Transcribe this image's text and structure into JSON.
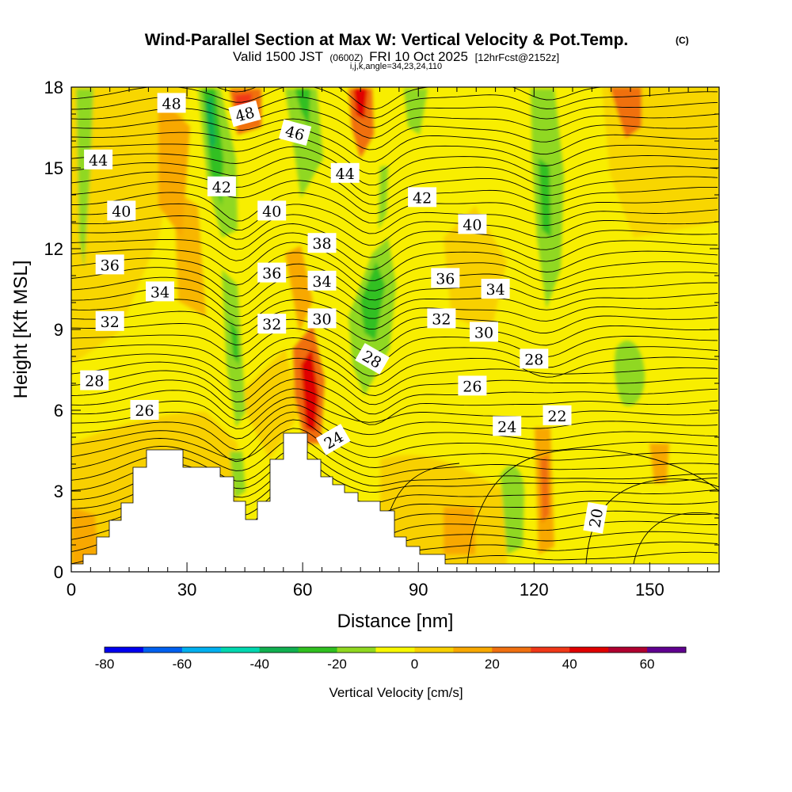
{
  "chart_data": {
    "type": "contour-section",
    "title": "Wind-Parallel Section at Max W: Vertical Velocity & Pot.Temp.",
    "title_mark": "(C)",
    "subtitle_parts": [
      "Valid 1500 JST",
      "(0600Z)",
      "FRI 10 Oct 2025",
      "[12hrFcst@2152z]"
    ],
    "params_line": "i,j,k,angle=34,23,24,110",
    "xlabel": "Distance [nm]",
    "ylabel": "Height [Kft MSL]",
    "xlim": [
      0,
      168
    ],
    "ylim": [
      0,
      18
    ],
    "x_ticks": [
      "0",
      "30",
      "60",
      "90",
      "120",
      "150"
    ],
    "y_ticks": [
      "0",
      "3",
      "6",
      "9",
      "12",
      "15",
      "18"
    ],
    "colorbar": {
      "label": "Vertical Velocity [cm/s]",
      "range": [
        -80,
        70
      ],
      "step": 10,
      "tick_labels": [
        "-80",
        "-60",
        "-40",
        "-20",
        "0",
        "20",
        "40",
        "60"
      ],
      "colors": [
        "#0000f0",
        "#0060f0",
        "#00b0f0",
        "#00d8b0",
        "#10b050",
        "#30c020",
        "#90d820",
        "#f8f800",
        "#f8d000",
        "#f8a800",
        "#f07010",
        "#f03818",
        "#e00000",
        "#b00030",
        "#600090"
      ]
    },
    "contour_labels": [
      {
        "text": "48",
        "x": 26,
        "y": 17.4,
        "rot": 0
      },
      {
        "text": "48",
        "x": 45,
        "y": 17.0,
        "rot": -15
      },
      {
        "text": "46",
        "x": 58,
        "y": 16.3,
        "rot": 15
      },
      {
        "text": "44",
        "x": 7,
        "y": 15.3,
        "rot": 0
      },
      {
        "text": "44",
        "x": 71,
        "y": 14.8,
        "rot": 0
      },
      {
        "text": "42",
        "x": 39,
        "y": 14.3,
        "rot": 0
      },
      {
        "text": "40",
        "x": 13,
        "y": 13.4,
        "rot": 0
      },
      {
        "text": "40",
        "x": 52,
        "y": 13.4,
        "rot": 0
      },
      {
        "text": "42",
        "x": 91,
        "y": 13.9,
        "rot": 0
      },
      {
        "text": "38",
        "x": 65,
        "y": 12.2,
        "rot": 0
      },
      {
        "text": "40",
        "x": 104,
        "y": 12.9,
        "rot": 0
      },
      {
        "text": "36",
        "x": 10,
        "y": 11.4,
        "rot": 0
      },
      {
        "text": "36",
        "x": 52,
        "y": 11.1,
        "rot": 0
      },
      {
        "text": "34",
        "x": 65,
        "y": 10.8,
        "rot": 0
      },
      {
        "text": "36",
        "x": 97,
        "y": 10.9,
        "rot": 0
      },
      {
        "text": "34",
        "x": 23,
        "y": 10.4,
        "rot": 0
      },
      {
        "text": "34",
        "x": 110,
        "y": 10.5,
        "rot": 0
      },
      {
        "text": "32",
        "x": 10,
        "y": 9.3,
        "rot": 0
      },
      {
        "text": "32",
        "x": 52,
        "y": 9.2,
        "rot": 0
      },
      {
        "text": "30",
        "x": 65,
        "y": 9.4,
        "rot": 0
      },
      {
        "text": "32",
        "x": 96,
        "y": 9.4,
        "rot": 0
      },
      {
        "text": "30",
        "x": 107,
        "y": 8.9,
        "rot": 0
      },
      {
        "text": "28",
        "x": 78,
        "y": 7.9,
        "rot": 30
      },
      {
        "text": "28",
        "x": 120,
        "y": 7.9,
        "rot": 0
      },
      {
        "text": "28",
        "x": 6,
        "y": 7.1,
        "rot": 0
      },
      {
        "text": "26",
        "x": 104,
        "y": 6.9,
        "rot": 0
      },
      {
        "text": "26",
        "x": 19,
        "y": 6.0,
        "rot": 0
      },
      {
        "text": "24",
        "x": 68,
        "y": 4.9,
        "rot": -30
      },
      {
        "text": "24",
        "x": 113,
        "y": 5.4,
        "rot": 0
      },
      {
        "text": "22",
        "x": 126,
        "y": 5.8,
        "rot": 0
      },
      {
        "text": "20",
        "x": 136,
        "y": 2.0,
        "rot": -80
      }
    ]
  }
}
